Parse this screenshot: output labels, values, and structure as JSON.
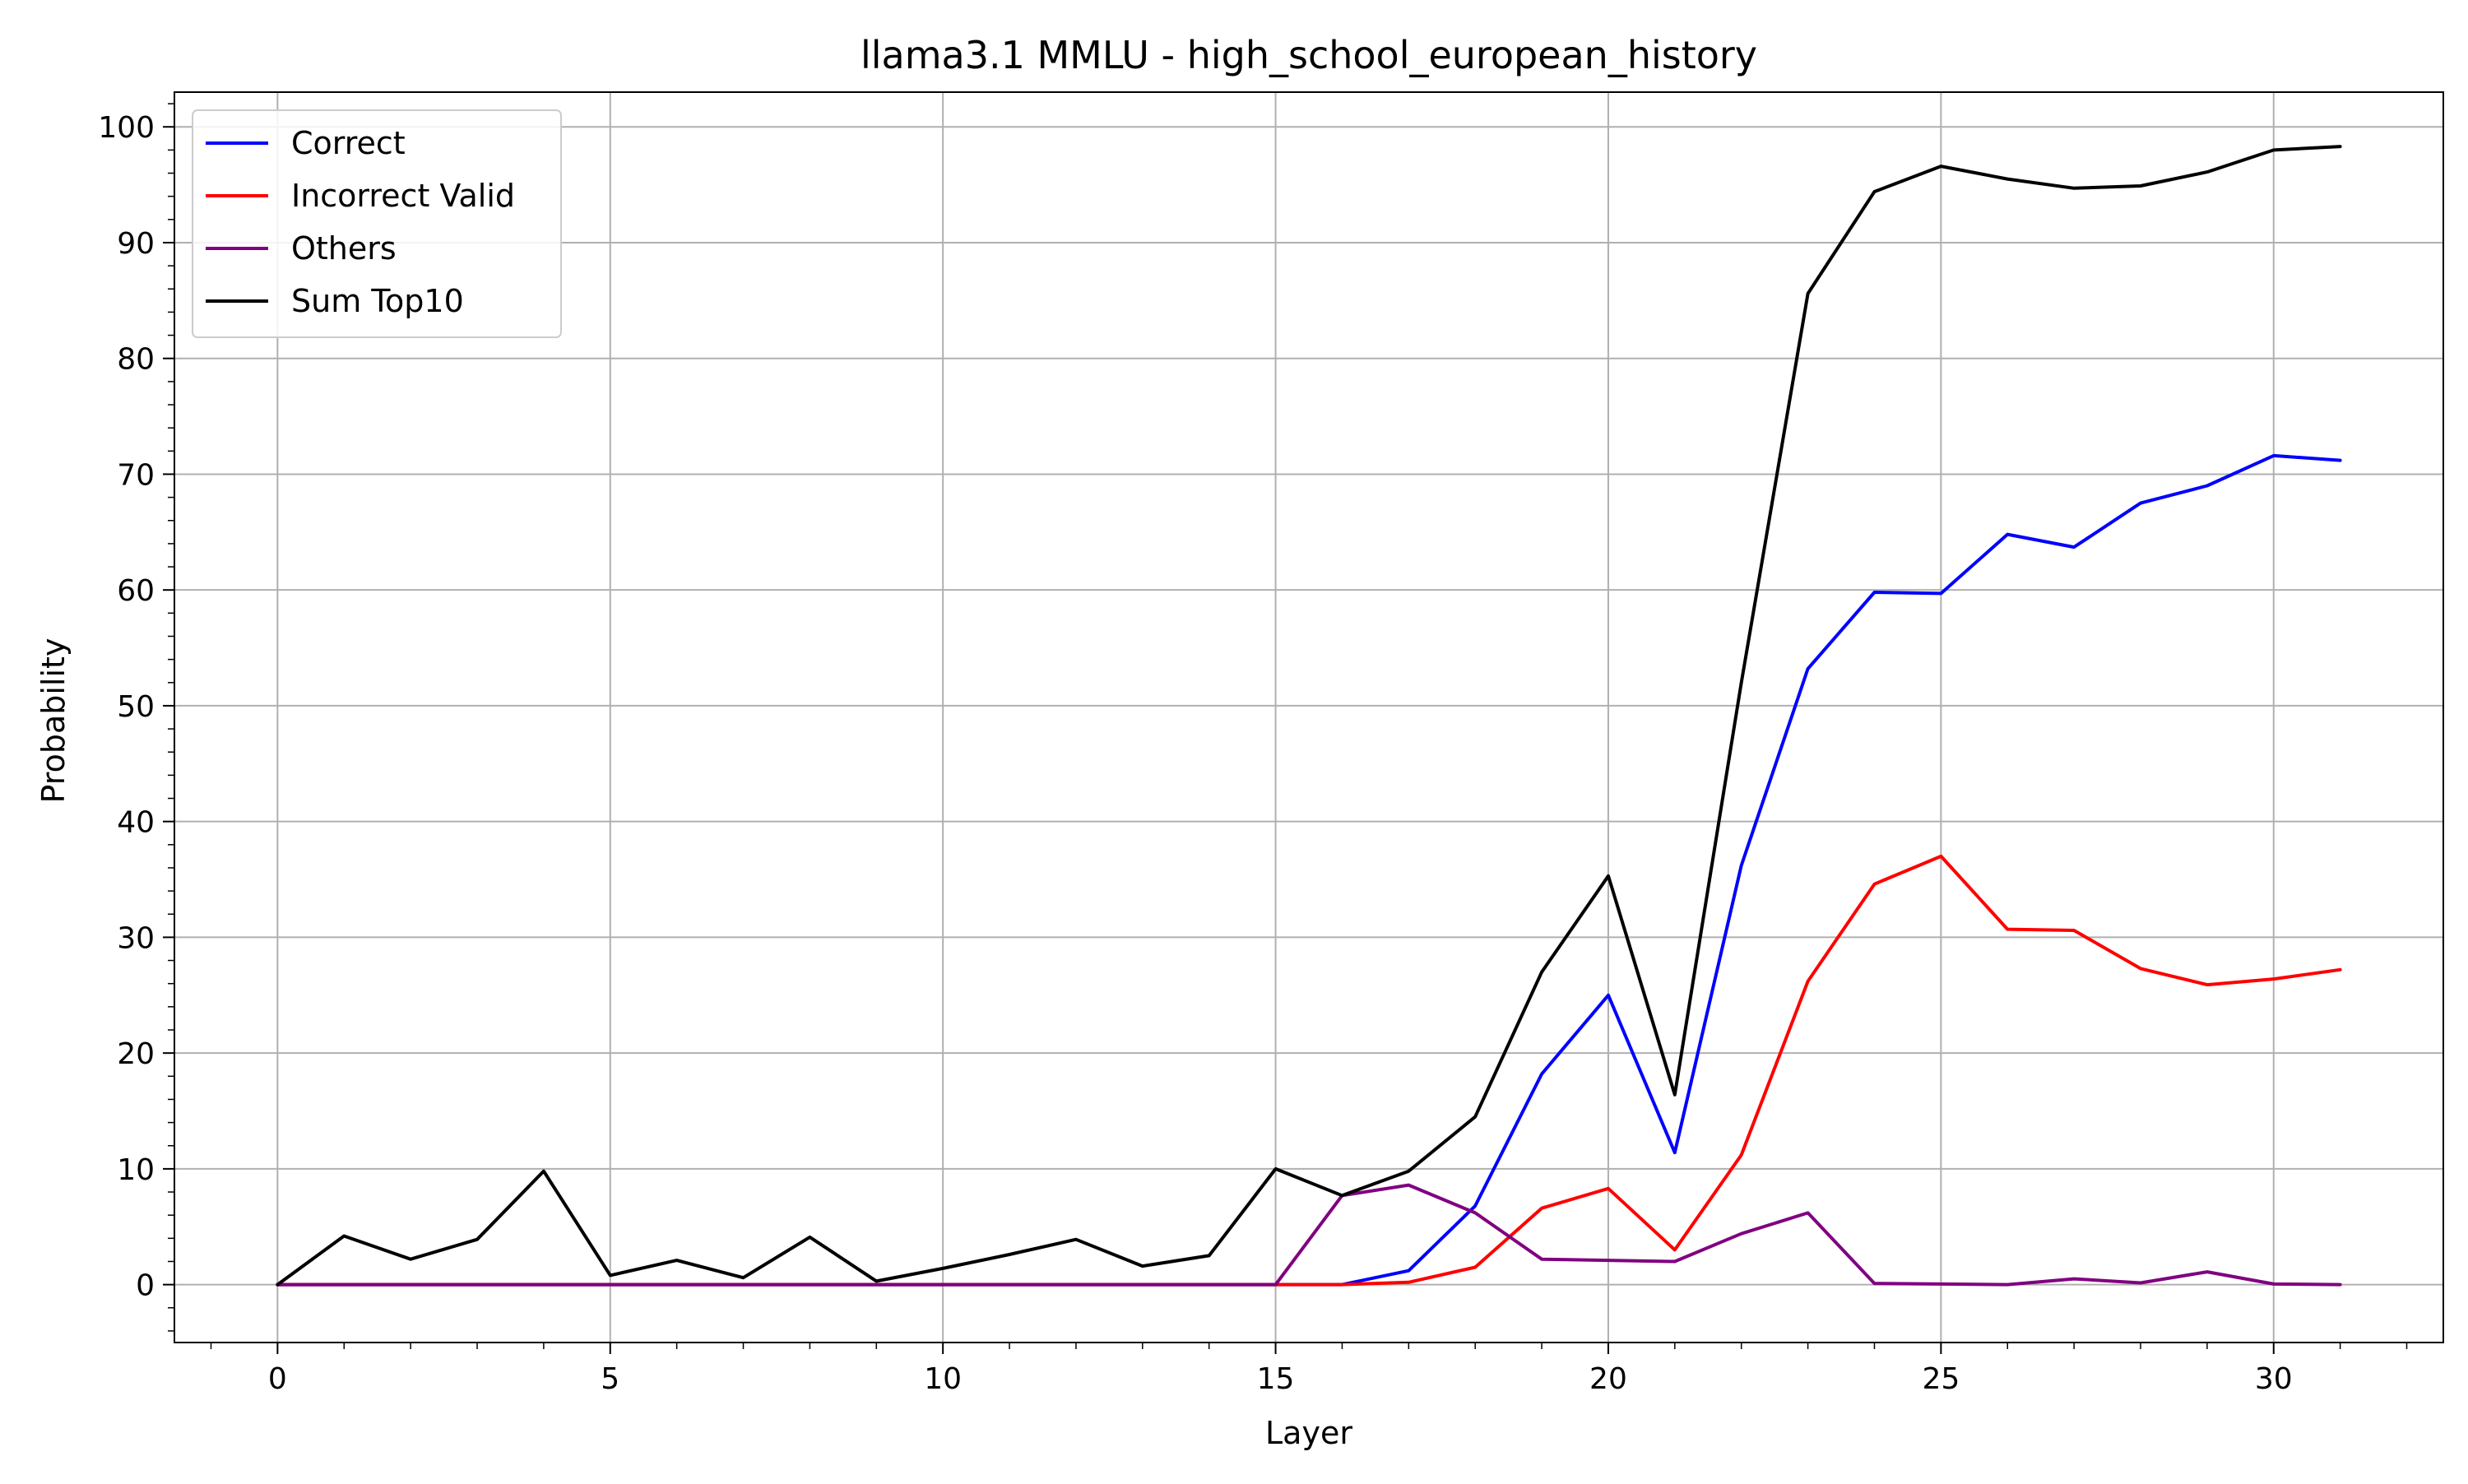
{
  "chart_data": {
    "type": "line",
    "title": "llama3.1 MMLU - high_school_european_history",
    "xlabel": "Layer",
    "ylabel": "Probability",
    "x": [
      0,
      1,
      2,
      3,
      4,
      5,
      6,
      7,
      8,
      9,
      10,
      11,
      12,
      13,
      14,
      15,
      16,
      17,
      18,
      19,
      20,
      21,
      22,
      23,
      24,
      25,
      26,
      27,
      28,
      29,
      30,
      31
    ],
    "xlim": [
      -1.55,
      32.55
    ],
    "ylim": [
      -5,
      103
    ],
    "xticks": [
      0,
      5,
      10,
      15,
      20,
      25,
      30
    ],
    "xtick_labels": [
      "0",
      "5",
      "10",
      "15",
      "20",
      "25",
      "30"
    ],
    "yticks": [
      0,
      10,
      20,
      30,
      40,
      50,
      60,
      70,
      80,
      90,
      100
    ],
    "ytick_labels": [
      "0",
      "10",
      "20",
      "30",
      "40",
      "50",
      "60",
      "70",
      "80",
      "90",
      "100"
    ],
    "grid": true,
    "legend_position": "top-left",
    "series": [
      {
        "name": "Correct",
        "color": "#0000ff",
        "values": [
          0,
          0,
          0,
          0,
          0,
          0,
          0,
          0,
          0,
          0,
          0,
          0,
          0,
          0,
          0,
          0,
          0,
          1.2,
          6.8,
          18.2,
          25,
          11.4,
          36.2,
          53.2,
          59.8,
          59.7,
          64.8,
          63.7,
          67.5,
          69,
          71.6,
          71.2
        ]
      },
      {
        "name": "Incorrect Valid",
        "color": "#ff0000",
        "values": [
          0,
          0,
          0,
          0,
          0,
          0,
          0,
          0,
          0,
          0,
          0,
          0,
          0,
          0,
          0,
          0,
          0,
          0.2,
          1.5,
          6.6,
          8.3,
          3.0,
          11.2,
          26.2,
          34.6,
          37.0,
          30.7,
          30.6,
          27.3,
          25.9,
          26.4,
          27.2
        ]
      },
      {
        "name": "Others",
        "color": "#800080",
        "values": [
          0,
          0,
          0,
          0,
          0,
          0,
          0,
          0,
          0,
          0,
          0,
          0,
          0,
          0,
          0,
          0,
          7.7,
          8.6,
          6.2,
          2.2,
          2.1,
          2.0,
          4.4,
          6.2,
          0.1,
          0.05,
          0.0,
          0.5,
          0.15,
          1.1,
          0.05,
          0.0
        ]
      },
      {
        "name": "Sum Top10",
        "color": "#000000",
        "values": [
          0,
          4.2,
          2.2,
          3.9,
          9.8,
          0.8,
          2.1,
          0.6,
          4.1,
          0.3,
          1.4,
          2.6,
          3.9,
          1.6,
          2.5,
          10.0,
          7.7,
          9.8,
          14.5,
          27.0,
          35.3,
          16.4,
          52.0,
          85.6,
          94.4,
          96.6,
          95.5,
          94.7,
          94.9,
          96.1,
          98.0,
          98.3
        ]
      }
    ]
  }
}
